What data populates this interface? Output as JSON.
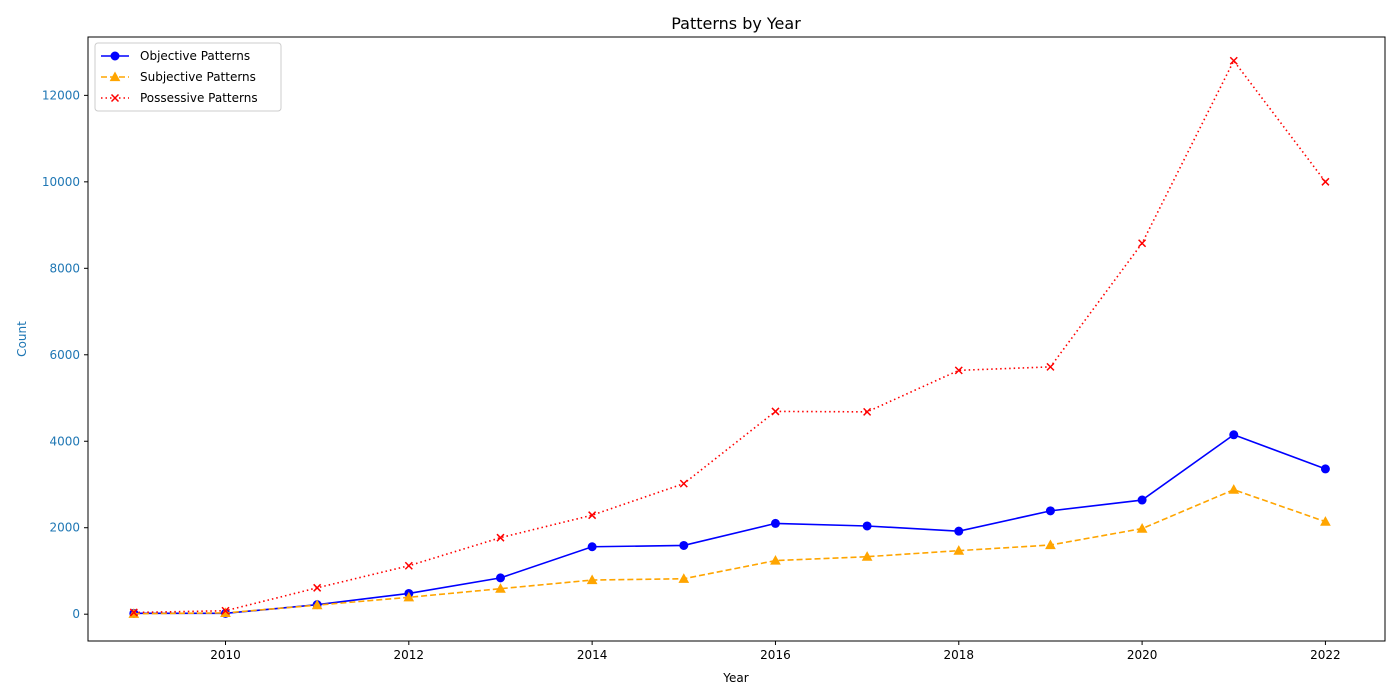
{
  "chart_data": {
    "type": "line",
    "title": "Patterns by Year",
    "xlabel": "Year",
    "ylabel": "Count",
    "xlim": [
      2008.5,
      2022.65
    ],
    "ylim": [
      -620,
      13350
    ],
    "xticks": [
      2010,
      2012,
      2014,
      2016,
      2018,
      2020,
      2022
    ],
    "yticks": [
      0,
      2000,
      4000,
      6000,
      8000,
      10000,
      12000
    ],
    "grid": false,
    "legend_position": "top-left",
    "x": [
      2009,
      2010,
      2011,
      2012,
      2013,
      2014,
      2015,
      2016,
      2017,
      2018,
      2019,
      2020,
      2021,
      2022
    ],
    "series": [
      {
        "name": "Objective Patterns",
        "color": "#0000ff",
        "linestyle": "solid",
        "marker": "circle",
        "values": [
          20,
          20,
          220,
          480,
          840,
          1560,
          1590,
          2100,
          2040,
          1920,
          2390,
          2640,
          4150,
          3360
        ]
      },
      {
        "name": "Subjective Patterns",
        "color": "#ffa500",
        "linestyle": "dashed",
        "marker": "triangle",
        "values": [
          10,
          30,
          210,
          390,
          590,
          790,
          820,
          1240,
          1330,
          1470,
          1600,
          1980,
          2880,
          2140
        ]
      },
      {
        "name": "Possessive Patterns",
        "color": "#ff0000",
        "linestyle": "dotted",
        "marker": "x",
        "values": [
          40,
          80,
          610,
          1120,
          1770,
          2290,
          3020,
          4690,
          4680,
          5640,
          5720,
          8580,
          12800,
          10000
        ]
      }
    ]
  }
}
